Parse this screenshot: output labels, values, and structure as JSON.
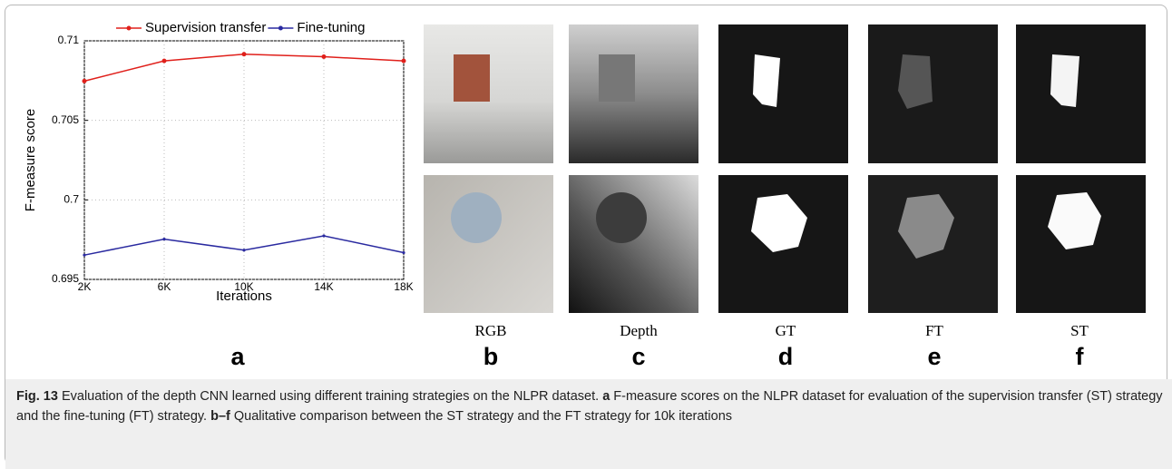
{
  "chart_data": {
    "type": "line",
    "categories": [
      "2K",
      "6K",
      "10K",
      "14K",
      "18K"
    ],
    "xlabel": "Iterations",
    "ylabel": "F-measure score",
    "ylim": [
      0.695,
      0.71
    ],
    "yticks": [
      0.695,
      0.7,
      0.705,
      0.71
    ],
    "grid": true,
    "legend": "top",
    "series": [
      {
        "name": "Supervision transfer",
        "color": "#e0201b",
        "values": [
          0.70747,
          0.70874,
          0.70916,
          0.709,
          0.70874
        ]
      },
      {
        "name": "Fine-tuning",
        "color": "#2a2aa0",
        "values": [
          0.69653,
          0.69753,
          0.69684,
          0.69774,
          0.69668
        ]
      }
    ]
  },
  "panel_labels": [
    "a",
    "b",
    "c",
    "d",
    "e",
    "f"
  ],
  "column_titles": [
    "RGB",
    "Depth",
    "GT",
    "FT",
    "ST"
  ],
  "caption": {
    "fig": "Fig. 13",
    "s1": " Evaluation of the depth CNN learned using different training strategies on the NLPR dataset. ",
    "a": "a",
    "s2": " F-measure scores on the NLPR dataset for evaluation of the supervision transfer (ST) strategy and the fine-tuning (FT) strategy. ",
    "bf": "b–f",
    "s3": " Qualitative comparison between the ST strategy and the FT strategy for 10k iterations"
  }
}
